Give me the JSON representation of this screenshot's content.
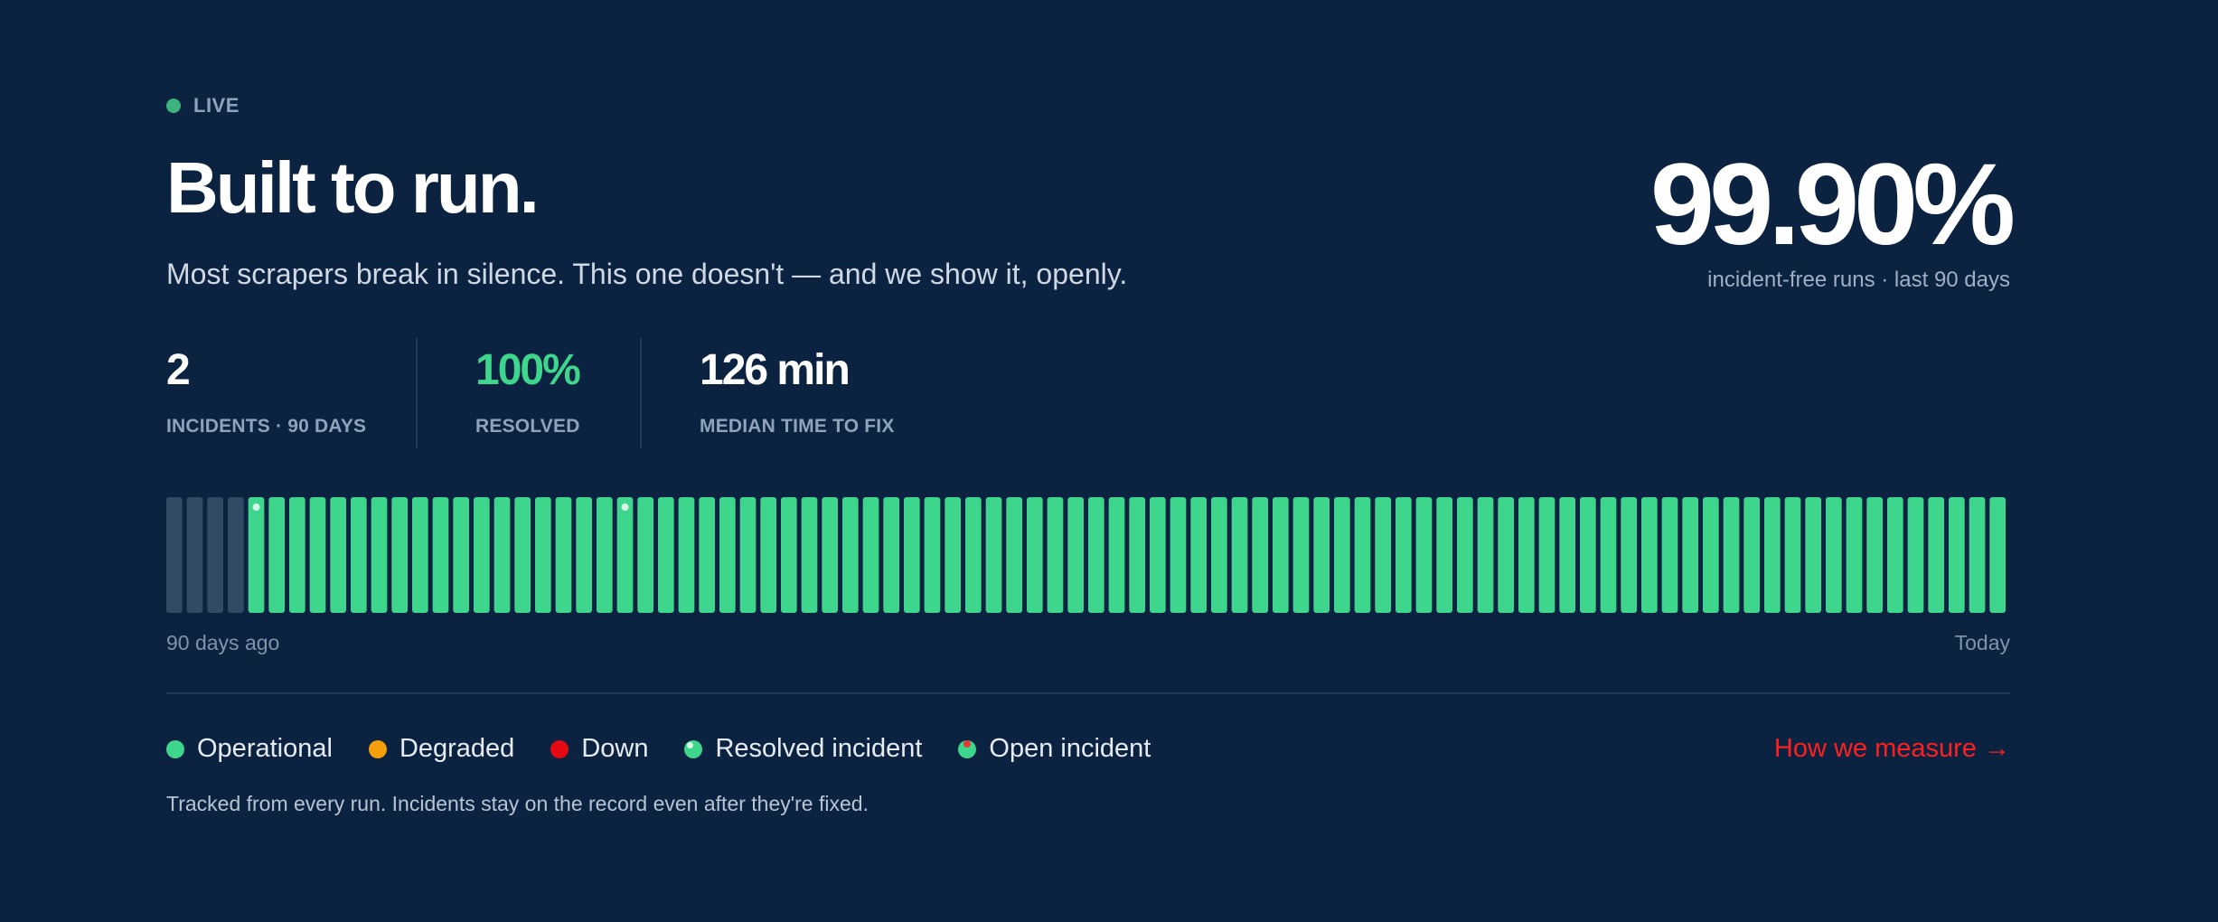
{
  "header": {
    "live_label": "LIVE",
    "title": "Built to run.",
    "subtitle": "Most scrapers break in silence. This one doesn't — and we show it, openly."
  },
  "uptime": {
    "value": "99.90%",
    "caption": "incident-free runs · last 90 days"
  },
  "stats": [
    {
      "value": "2",
      "label": "INCIDENTS · 90 DAYS"
    },
    {
      "value": "100%",
      "label": "RESOLVED"
    },
    {
      "value": "126 min",
      "label": "MEDIAN TIME TO FIX"
    }
  ],
  "timeline": {
    "start_label": "90 days ago",
    "end_label": "Today",
    "days": [
      "none",
      "none",
      "none",
      "none",
      "resolved",
      "ok",
      "ok",
      "ok",
      "ok",
      "ok",
      "ok",
      "ok",
      "ok",
      "ok",
      "ok",
      "ok",
      "ok",
      "ok",
      "ok",
      "ok",
      "ok",
      "ok",
      "resolved",
      "ok",
      "ok",
      "ok",
      "ok",
      "ok",
      "ok",
      "ok",
      "ok",
      "ok",
      "ok",
      "ok",
      "ok",
      "ok",
      "ok",
      "ok",
      "ok",
      "ok",
      "ok",
      "ok",
      "ok",
      "ok",
      "ok",
      "ok",
      "ok",
      "ok",
      "ok",
      "ok",
      "ok",
      "ok",
      "ok",
      "ok",
      "ok",
      "ok",
      "ok",
      "ok",
      "ok",
      "ok",
      "ok",
      "ok",
      "ok",
      "ok",
      "ok",
      "ok",
      "ok",
      "ok",
      "ok",
      "ok",
      "ok",
      "ok",
      "ok",
      "ok",
      "ok",
      "ok",
      "ok",
      "ok",
      "ok",
      "ok",
      "ok",
      "ok",
      "ok",
      "ok",
      "ok",
      "ok",
      "ok",
      "ok",
      "ok",
      "ok"
    ],
    "colors": {
      "ok": "#3dd68c",
      "none": "#314a66",
      "resolved_marker": "#d8f7e7"
    }
  },
  "legend": [
    {
      "label": "Operational",
      "color": "#3dd68c",
      "icon": "operational-dot-icon"
    },
    {
      "label": "Degraded",
      "color": "#f59e0b",
      "icon": "degraded-dot-icon"
    },
    {
      "label": "Down",
      "color": "#e50914",
      "icon": "down-dot-icon"
    },
    {
      "label": "Resolved incident",
      "color": "#3dd68c",
      "icon": "resolved-incident-dot-icon"
    },
    {
      "label": "Open incident",
      "color": "#3dd68c",
      "icon": "open-incident-dot-icon"
    }
  ],
  "links": {
    "how_we_measure": "How we measure →"
  },
  "footnote": "Tracked from every run. Incidents stay on the record even after they're fixed."
}
